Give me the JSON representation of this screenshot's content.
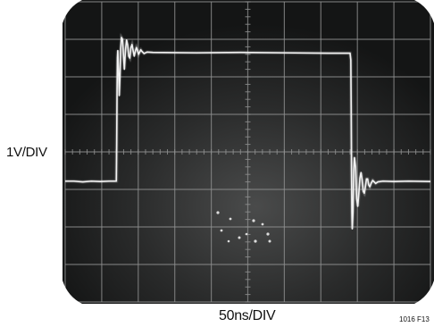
{
  "chart_data": {
    "type": "line",
    "title": "",
    "ylabel": "1V/DIV",
    "xlabel": "50ns/DIV",
    "figure_id": "1016 F13",
    "x_units": "ns",
    "y_units": "V",
    "x_per_div": 50,
    "y_per_div": 1,
    "xlim": [
      0,
      500
    ],
    "ylim": [
      -4,
      4
    ],
    "grid": true,
    "grid_divisions": {
      "x": 10,
      "y": 8
    },
    "trace_color": "#f2f2f2",
    "screen_color": "#1b1c1c",
    "series": [
      {
        "points": [
          [
            0,
            -0.78
          ],
          [
            12,
            -0.78
          ],
          [
            24,
            -0.8
          ],
          [
            36,
            -0.78
          ],
          [
            48,
            -0.79
          ],
          [
            60,
            -0.78
          ],
          [
            70,
            -0.78
          ],
          [
            70.5,
            0.2
          ],
          [
            71,
            1.6
          ],
          [
            71.5,
            2.5
          ],
          [
            72,
            2.7
          ],
          [
            73,
            2.2
          ],
          [
            74,
            1.5
          ],
          [
            75,
            2.0
          ],
          [
            76,
            2.75
          ],
          [
            77,
            3.05
          ],
          [
            78.5,
            3.0
          ],
          [
            80,
            2.5
          ],
          [
            81,
            2.2
          ],
          [
            82.5,
            2.7
          ],
          [
            84,
            2.98
          ],
          [
            85.5,
            2.85
          ],
          [
            87,
            2.55
          ],
          [
            88.5,
            2.5
          ],
          [
            90,
            2.78
          ],
          [
            91.5,
            2.86
          ],
          [
            93,
            2.7
          ],
          [
            94.5,
            2.55
          ],
          [
            96,
            2.68
          ],
          [
            97.5,
            2.78
          ],
          [
            99,
            2.7
          ],
          [
            100.5,
            2.6
          ],
          [
            102,
            2.66
          ],
          [
            103.5,
            2.72
          ],
          [
            105,
            2.68
          ],
          [
            108,
            2.62
          ],
          [
            112,
            2.66
          ],
          [
            120,
            2.65
          ],
          [
            180,
            2.64
          ],
          [
            240,
            2.65
          ],
          [
            300,
            2.64
          ],
          [
            360,
            2.63
          ],
          [
            390,
            2.63
          ],
          [
            391,
            2.45
          ],
          [
            391.5,
            1.2
          ],
          [
            392,
            -0.6
          ],
          [
            392.5,
            -1.6
          ],
          [
            393,
            -2.05
          ],
          [
            394,
            -1.6
          ],
          [
            395,
            -0.5
          ],
          [
            396,
            -0.15
          ],
          [
            397.5,
            -0.4
          ],
          [
            399,
            -1.25
          ],
          [
            400.5,
            -1.45
          ],
          [
            402,
            -1.1
          ],
          [
            403.5,
            -0.7
          ],
          [
            405,
            -0.55
          ],
          [
            406.5,
            -0.75
          ],
          [
            408,
            -1.05
          ],
          [
            409.5,
            -1.1
          ],
          [
            411,
            -0.92
          ],
          [
            412.5,
            -0.72
          ],
          [
            414,
            -0.72
          ],
          [
            415.5,
            -0.88
          ],
          [
            417,
            -0.93
          ],
          [
            419,
            -0.83
          ],
          [
            421,
            -0.76
          ],
          [
            423,
            -0.8
          ],
          [
            425,
            -0.84
          ],
          [
            428,
            -0.8
          ],
          [
            435,
            -0.78
          ],
          [
            450,
            -0.79
          ],
          [
            470,
            -0.78
          ],
          [
            500,
            -0.79
          ]
        ]
      }
    ]
  }
}
